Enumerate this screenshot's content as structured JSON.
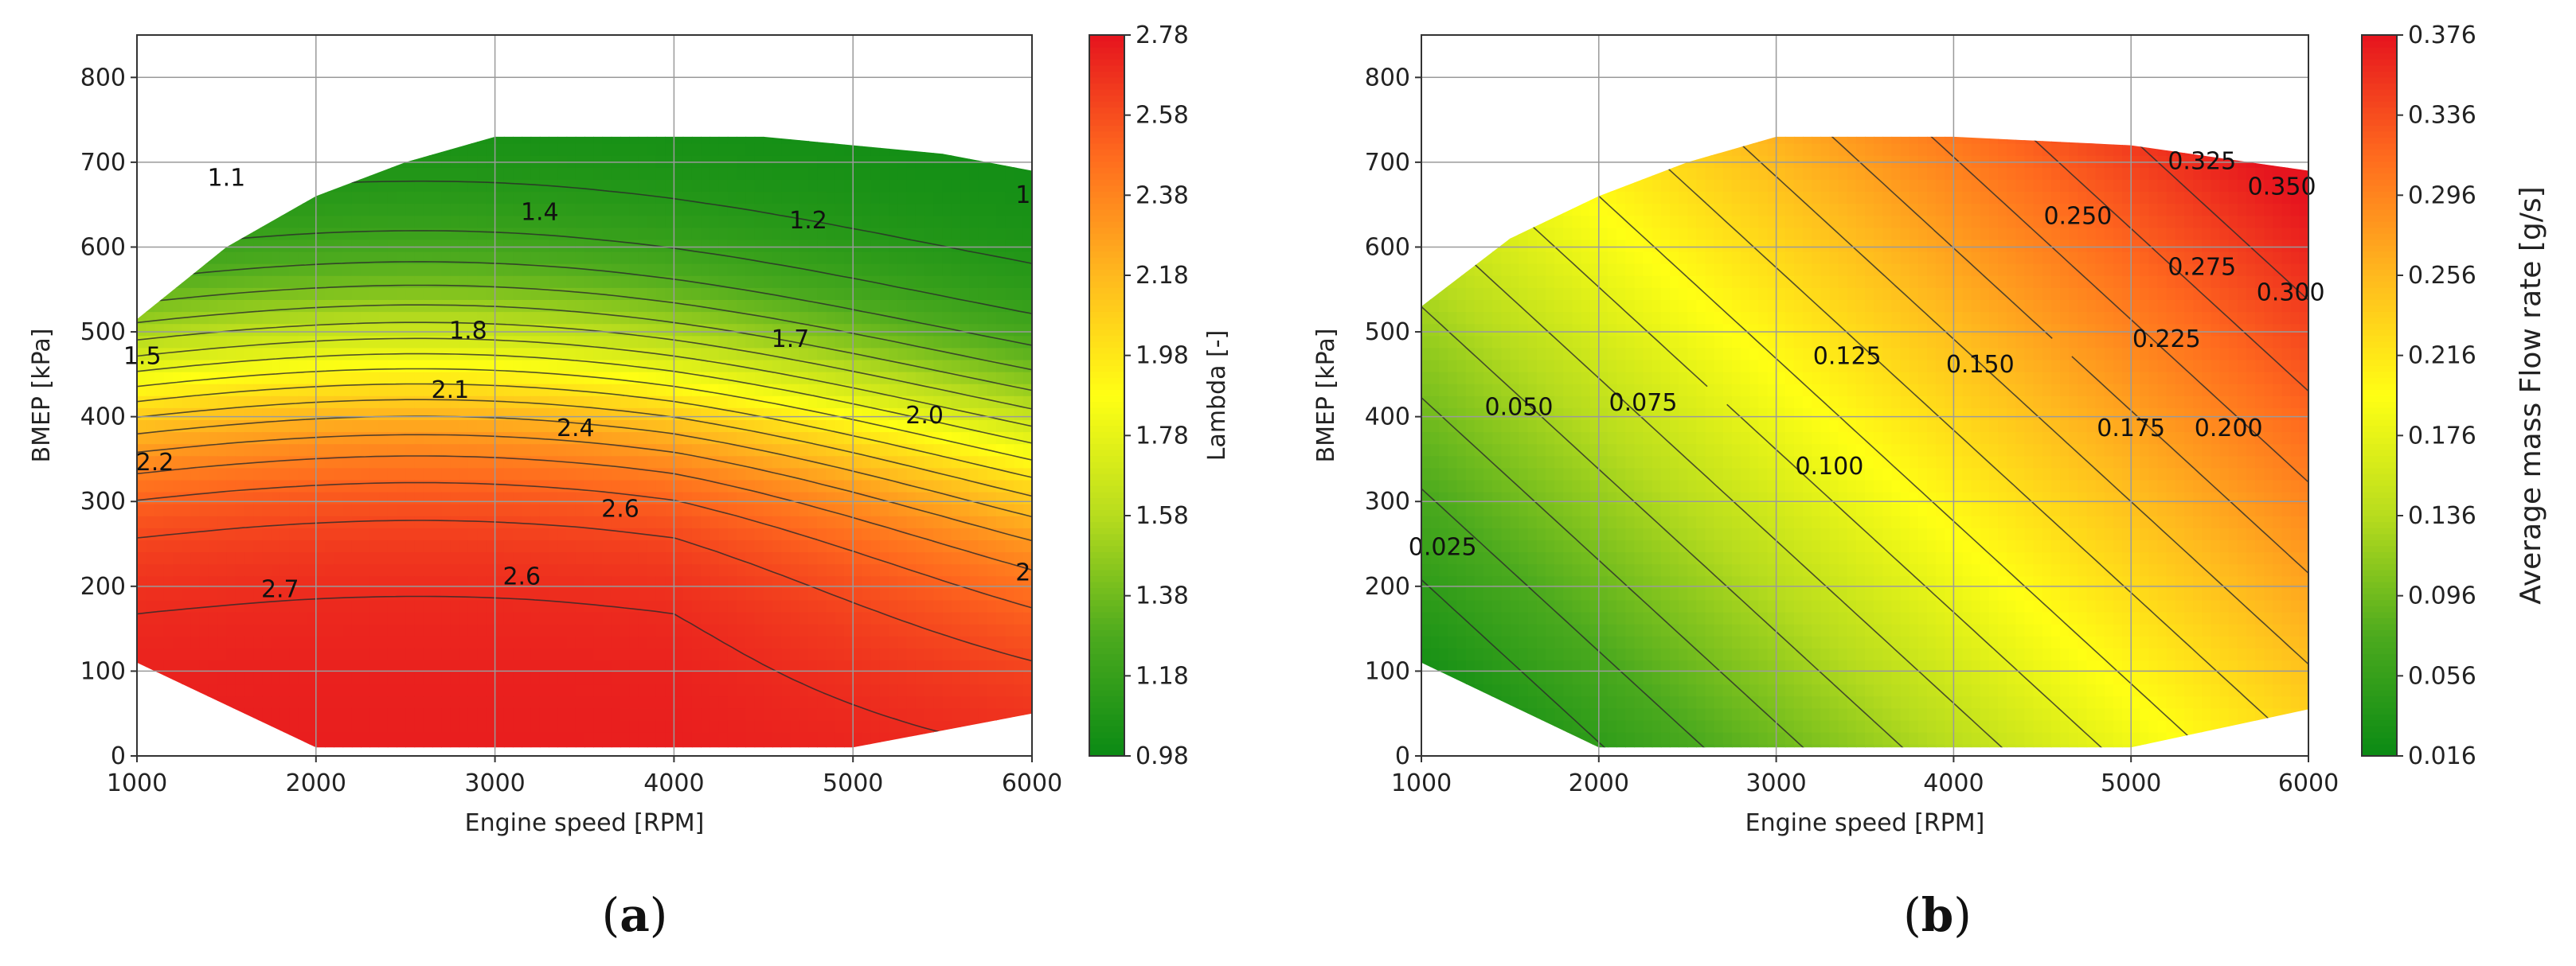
{
  "panels": [
    {
      "label_open": "(",
      "label_letter": "a",
      "label_close": ")"
    },
    {
      "label_open": "(",
      "label_letter": "b",
      "label_close": ")"
    }
  ],
  "colormap": [
    "#0a8a14",
    "#4caa1e",
    "#b7dc1e",
    "#ffff14",
    "#ffb91e",
    "#ff6a1e",
    "#e6141e"
  ],
  "chart_data": [
    {
      "type": "heatmap",
      "subtype": "filled-contour",
      "title": "",
      "xlabel": "Engine speed [RPM]",
      "ylabel": "BMEP [kPa]",
      "xlim": [
        1000,
        6000
      ],
      "ylim": [
        0,
        850
      ],
      "xticks": [
        1000,
        2000,
        3000,
        4000,
        5000,
        6000
      ],
      "yticks": [
        0,
        100,
        200,
        300,
        400,
        500,
        600,
        700,
        800
      ],
      "grid": true,
      "colorbar": {
        "label": "Lambda [-]",
        "range": [
          0.98,
          2.78
        ],
        "ticks": [
          "0.98",
          "1.18",
          "1.38",
          "1.58",
          "1.78",
          "1.98",
          "2.18",
          "2.38",
          "2.58",
          "2.78"
        ]
      },
      "domain_boundary": [
        [
          1000,
          110
        ],
        [
          1000,
          515
        ],
        [
          1500,
          600
        ],
        [
          2000,
          660
        ],
        [
          2500,
          700
        ],
        [
          3000,
          730
        ],
        [
          4500,
          730
        ],
        [
          5500,
          710
        ],
        [
          6000,
          690
        ],
        [
          6000,
          50
        ],
        [
          5000,
          10
        ],
        [
          2000,
          10
        ],
        [
          1000,
          110
        ]
      ],
      "contour_labels": [
        {
          "text": "1.1",
          "x": 1500,
          "y": 680
        },
        {
          "text": "1.4",
          "x": 3250,
          "y": 640
        },
        {
          "text": "1.2",
          "x": 4750,
          "y": 630
        },
        {
          "text": "1",
          "x": 5950,
          "y": 660
        },
        {
          "text": "1.5",
          "x": 1030,
          "y": 470
        },
        {
          "text": "1.8",
          "x": 2850,
          "y": 500
        },
        {
          "text": "1.7",
          "x": 4650,
          "y": 490
        },
        {
          "text": "2.1",
          "x": 2750,
          "y": 430
        },
        {
          "text": "2.0",
          "x": 5400,
          "y": 400
        },
        {
          "text": "2.4",
          "x": 3450,
          "y": 385
        },
        {
          "text": "2.2",
          "x": 1100,
          "y": 345
        },
        {
          "text": "2.6",
          "x": 3700,
          "y": 290
        },
        {
          "text": "2.7",
          "x": 1800,
          "y": 195
        },
        {
          "text": "2.6",
          "x": 3150,
          "y": 210
        },
        {
          "text": "2",
          "x": 5950,
          "y": 215
        }
      ],
      "value_field": {
        "low_lambda_top": 1.0,
        "high_lambda_bottom": 2.75,
        "description_values": [
          {
            "x": 1000,
            "y": 500,
            "value": 1.5
          },
          {
            "x": 1500,
            "y": 250,
            "value": 2.75
          },
          {
            "x": 3000,
            "y": 700,
            "value": 1.15
          },
          {
            "x": 3000,
            "y": 300,
            "value": 2.65
          },
          {
            "x": 6000,
            "y": 650,
            "value": 1.05
          },
          {
            "x": 6000,
            "y": 300,
            "value": 2.2
          },
          {
            "x": 5000,
            "y": 100,
            "value": 2.5
          }
        ]
      }
    },
    {
      "type": "heatmap",
      "subtype": "filled-contour",
      "title": "",
      "xlabel": "Engine speed [RPM]",
      "ylabel": "BMEP [kPa]",
      "xlim": [
        1000,
        6000
      ],
      "ylim": [
        0,
        850
      ],
      "xticks": [
        1000,
        2000,
        3000,
        4000,
        5000,
        6000
      ],
      "yticks": [
        0,
        100,
        200,
        300,
        400,
        500,
        600,
        700,
        800
      ],
      "grid": true,
      "colorbar": {
        "label": "Average mass Flow rate [g/s]",
        "range": [
          0.016,
          0.376
        ],
        "ticks": [
          "0.016",
          "0.056",
          "0.096",
          "0.136",
          "0.176",
          "0.216",
          "0.256",
          "0.296",
          "0.336",
          "0.376"
        ]
      },
      "domain_boundary": [
        [
          1000,
          110
        ],
        [
          1000,
          530
        ],
        [
          1500,
          610
        ],
        [
          2000,
          660
        ],
        [
          2500,
          700
        ],
        [
          3000,
          730
        ],
        [
          4000,
          730
        ],
        [
          5000,
          720
        ],
        [
          6000,
          690
        ],
        [
          6000,
          55
        ],
        [
          5000,
          10
        ],
        [
          2000,
          10
        ],
        [
          1000,
          110
        ]
      ],
      "contour_labels": [
        {
          "text": "0.025",
          "x": 1120,
          "y": 245
        },
        {
          "text": "0.050",
          "x": 1550,
          "y": 410
        },
        {
          "text": "0.075",
          "x": 2250,
          "y": 415
        },
        {
          "text": "0.100",
          "x": 3300,
          "y": 340
        },
        {
          "text": "0.125",
          "x": 3400,
          "y": 470
        },
        {
          "text": "0.150",
          "x": 4150,
          "y": 460
        },
        {
          "text": "0.175",
          "x": 5000,
          "y": 385
        },
        {
          "text": "0.200",
          "x": 5550,
          "y": 385
        },
        {
          "text": "0.225",
          "x": 5200,
          "y": 490
        },
        {
          "text": "0.250",
          "x": 4700,
          "y": 635
        },
        {
          "text": "0.275",
          "x": 5400,
          "y": 575
        },
        {
          "text": "0.300",
          "x": 5900,
          "y": 545
        },
        {
          "text": "0.325",
          "x": 5400,
          "y": 700
        },
        {
          "text": "0.350",
          "x": 5850,
          "y": 670
        }
      ],
      "value_field": {
        "model": "value ≈ 0.016 + 0.36 * clamp((x-1000)/5000*0.62 + y/850*0.55 - 0.04)",
        "description_values": [
          {
            "x": 1000,
            "y": 100,
            "value": 0.02
          },
          {
            "x": 3000,
            "y": 700,
            "value": 0.2
          },
          {
            "x": 6000,
            "y": 650,
            "value": 0.37
          },
          {
            "x": 6000,
            "y": 100,
            "value": 0.21
          }
        ]
      }
    }
  ]
}
